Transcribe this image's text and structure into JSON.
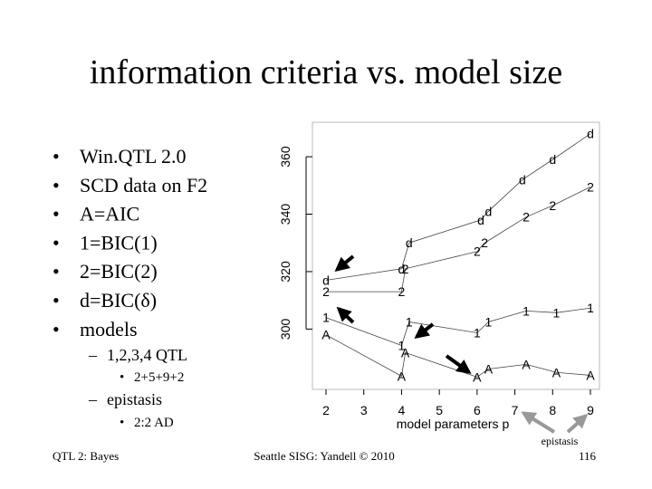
{
  "title": "information criteria vs. model size",
  "bullets": [
    "Win.QTL 2.0",
    "SCD data on F2",
    "A=AIC",
    "1=BIC(1)",
    "2=BIC(2)",
    "d=BIC(δ)",
    "models"
  ],
  "subitems": [
    {
      "text": "1,2,3,4 QTL",
      "items": [
        "2+5+9+2"
      ]
    },
    {
      "text": "epistasis",
      "items": [
        "2:2 AD"
      ]
    }
  ],
  "annotation": "epistasis",
  "footer": {
    "left": "QTL 2: Bayes",
    "center": "Seattle SISG: Yandell © 2010",
    "page": "116"
  },
  "chart_data": {
    "type": "line",
    "xlabel": "model parameters p",
    "xlim": [
      1.64,
      9.24
    ],
    "ylim": [
      279,
      372
    ],
    "xticks": [
      2,
      3,
      4,
      5,
      6,
      7,
      8,
      9
    ],
    "yticks": [
      300,
      320,
      340,
      360
    ],
    "series": [
      {
        "name": "d",
        "color": "#000000",
        "x": [
          2,
          4,
          4.2,
          6.1,
          6.3,
          7.2,
          8,
          9
        ],
        "values": [
          317,
          321,
          330,
          338,
          341,
          352,
          359,
          368
        ]
      },
      {
        "name": "2",
        "color": "#000000",
        "x": [
          2,
          4,
          4.1,
          6.0,
          6.2,
          7.3,
          8.0,
          9
        ],
        "values": [
          313,
          313,
          321,
          327,
          330,
          339,
          343,
          349.5
        ]
      },
      {
        "name": "1",
        "color": "#000000",
        "x": [
          2,
          4,
          4.2,
          6.0,
          6.3,
          7.3,
          8.1,
          9
        ],
        "values": [
          304,
          294.3,
          302.5,
          298.7,
          302.5,
          306.3,
          305.7,
          307.3
        ]
      },
      {
        "name": "A",
        "color": "#000000",
        "x": [
          2,
          4,
          4.1,
          6.0,
          6.3,
          7.3,
          8.1,
          9
        ],
        "values": [
          298,
          283.6,
          291.8,
          283.3,
          286.1,
          287.7,
          284.9,
          283.9
        ]
      }
    ]
  }
}
